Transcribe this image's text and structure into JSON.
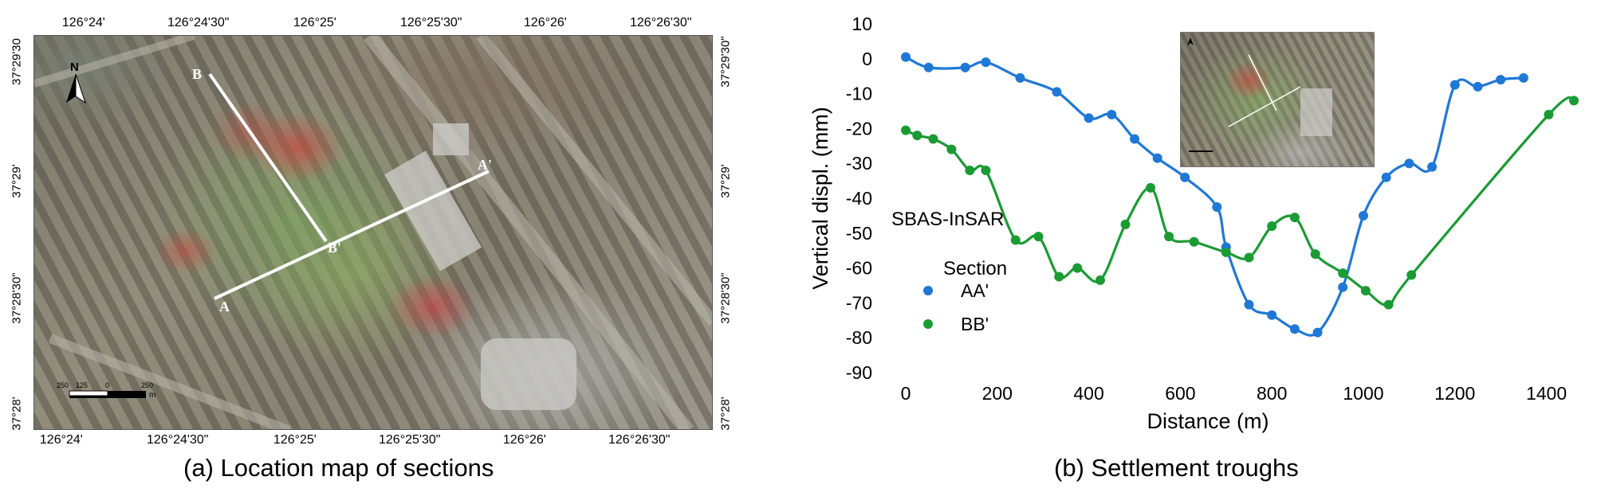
{
  "panel_a": {
    "caption": "(a) Location map of sections",
    "top_ticks": [
      "126°24'",
      "126°24'30\"",
      "126°25'",
      "126°25'30\"",
      "126°26'",
      "126°26'30\""
    ],
    "bottom_ticks": [
      "126°24'",
      "126°24'30\"",
      "126°25'",
      "126°25'30\"",
      "126°26'",
      "126°26'30\""
    ],
    "left_ticks": [
      "37°29'30",
      "37°29'",
      "37°28'30\"",
      "37°28'"
    ],
    "right_ticks": [
      "37°29'30\"",
      "37°29'",
      "37°28'30\"",
      "37°28'"
    ],
    "north_label": "N",
    "section_labels": {
      "a_start": "A",
      "a_end": "A'",
      "b_start": "B",
      "b_end": "B'"
    },
    "scale_bar": {
      "labels": [
        "250",
        "125",
        "0",
        "250"
      ],
      "unit": "m"
    }
  },
  "panel_b": {
    "caption": "(b) Settlement troughs",
    "method_label": "SBAS-InSAR",
    "legend_title": "Section"
  },
  "chart_data": {
    "type": "line",
    "xlabel": "Distance (m)",
    "ylabel": "Vertical displ. (mm)",
    "xlim": [
      0,
      1460
    ],
    "ylim": [
      -90,
      10
    ],
    "xticks": [
      0,
      200,
      400,
      600,
      800,
      1000,
      1200,
      1400
    ],
    "yticks": [
      10,
      0,
      -10,
      -20,
      -30,
      -40,
      -50,
      -60,
      -70,
      -80,
      -90
    ],
    "grid": false,
    "legend": "left",
    "series": [
      {
        "name": "AA'",
        "color": "#1f78d6",
        "x": [
          0,
          50,
          130,
          175,
          250,
          330,
          400,
          450,
          500,
          550,
          610,
          680,
          700,
          750,
          800,
          850,
          900,
          955,
          1000,
          1050,
          1100,
          1150,
          1200,
          1250,
          1300,
          1350
        ],
        "y": [
          0.5,
          -2.5,
          -2.5,
          -1,
          -5.5,
          -9.5,
          -17,
          -16,
          -23,
          -28.5,
          -34,
          -42.5,
          -54,
          -70.5,
          -73.5,
          -77.5,
          -78.5,
          -65.5,
          -45,
          -34,
          -30,
          -31,
          -7.5,
          -8,
          -6,
          -5.5
        ]
      },
      {
        "name": "BB'",
        "color": "#1a9b34",
        "x": [
          0,
          25,
          60,
          100,
          140,
          175,
          240,
          290,
          335,
          375,
          425,
          480,
          535,
          575,
          630,
          700,
          750,
          800,
          850,
          895,
          955,
          1005,
          1055,
          1105,
          1405,
          1460
        ],
        "y": [
          -20.5,
          -22,
          -23,
          -26,
          -32,
          -32,
          -52,
          -51,
          -62.5,
          -60,
          -63.5,
          -47.5,
          -37,
          -51,
          -52.5,
          -55.5,
          -57,
          -48,
          -45.5,
          -56,
          -61.5,
          -66.5,
          -70.5,
          -62,
          -16,
          -12
        ]
      }
    ]
  }
}
